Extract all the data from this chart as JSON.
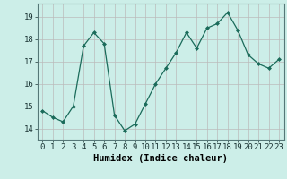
{
  "x": [
    0,
    1,
    2,
    3,
    4,
    5,
    6,
    7,
    8,
    9,
    10,
    11,
    12,
    13,
    14,
    15,
    16,
    17,
    18,
    19,
    20,
    21,
    22,
    23
  ],
  "y": [
    14.8,
    14.5,
    14.3,
    15.0,
    17.7,
    18.3,
    17.8,
    14.6,
    13.9,
    14.2,
    15.1,
    16.0,
    16.7,
    17.4,
    18.3,
    17.6,
    18.5,
    18.7,
    19.2,
    18.4,
    17.3,
    16.9,
    16.7,
    17.1
  ],
  "line_color": "#1a6b5a",
  "marker": "D",
  "marker_size": 2,
  "bg_color": "#cceee8",
  "grid_color": "#bbbbbb",
  "xlabel": "Humidex (Indice chaleur)",
  "ylim": [
    13.5,
    19.6
  ],
  "xlim": [
    -0.5,
    23.5
  ],
  "yticks": [
    14,
    15,
    16,
    17,
    18,
    19
  ],
  "xticks": [
    0,
    1,
    2,
    3,
    4,
    5,
    6,
    7,
    8,
    9,
    10,
    11,
    12,
    13,
    14,
    15,
    16,
    17,
    18,
    19,
    20,
    21,
    22,
    23
  ],
  "label_fontsize": 7.5,
  "tick_fontsize": 6.5
}
